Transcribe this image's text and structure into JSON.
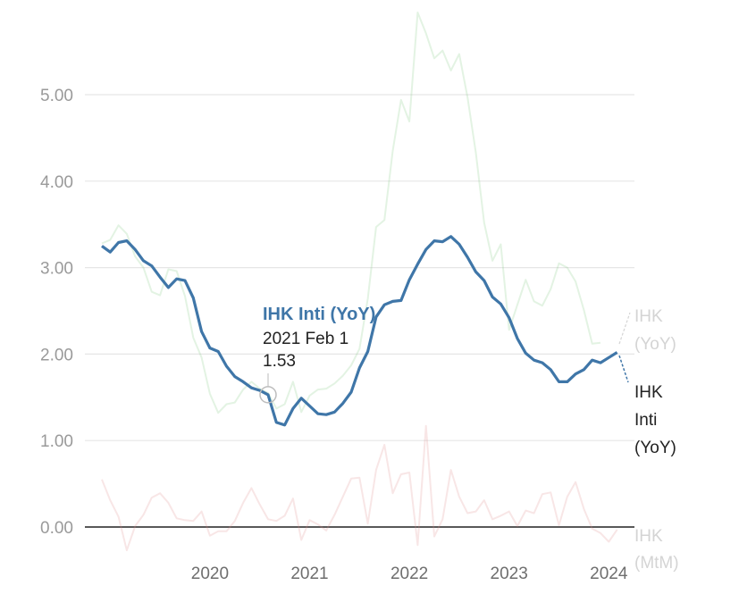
{
  "chart_data": {
    "type": "line",
    "title": "",
    "xlabel": "",
    "ylabel": "",
    "ylim": [
      0,
      6
    ],
    "yticks": [
      "0.00",
      "1.00",
      "2.00",
      "3.00",
      "4.00",
      "5.00"
    ],
    "xticks": [
      "2020",
      "2021",
      "2022",
      "2023",
      "2024"
    ],
    "grid": true,
    "x_start": "2019-06",
    "series": [
      {
        "name": "IHK Inti (YoY)",
        "color": "#3f76a8",
        "values": [
          3.25,
          3.18,
          3.29,
          3.31,
          3.21,
          3.08,
          3.02,
          2.89,
          2.77,
          2.87,
          2.85,
          2.65,
          2.26,
          2.07,
          2.03,
          1.86,
          1.74,
          1.68,
          1.61,
          1.58,
          1.53,
          1.21,
          1.18,
          1.37,
          1.49,
          1.4,
          1.31,
          1.3,
          1.33,
          1.43,
          1.56,
          1.84,
          2.03,
          2.43,
          2.57,
          2.61,
          2.62,
          2.86,
          3.04,
          3.21,
          3.31,
          3.3,
          3.36,
          3.27,
          3.12,
          2.95,
          2.85,
          2.66,
          2.58,
          2.42,
          2.18,
          2.01,
          1.93,
          1.9,
          1.82,
          1.68,
          1.68,
          1.77,
          1.82,
          1.93,
          1.9,
          1.96,
          2.02
        ]
      },
      {
        "name": "IHK (YoY)",
        "color": "#7ec97e",
        "values": [
          3.28,
          3.32,
          3.49,
          3.39,
          3.13,
          3.0,
          2.72,
          2.68,
          2.98,
          2.96,
          2.67,
          2.19,
          1.96,
          1.54,
          1.32,
          1.42,
          1.44,
          1.59,
          1.68,
          1.6,
          1.55,
          1.37,
          1.42,
          1.68,
          1.33,
          1.52,
          1.59,
          1.6,
          1.66,
          1.75,
          1.87,
          2.06,
          2.64,
          3.47,
          3.55,
          4.35,
          4.94,
          4.69,
          5.95,
          5.71,
          5.42,
          5.51,
          5.28,
          5.47,
          4.97,
          4.33,
          3.52,
          3.08,
          3.27,
          2.28,
          2.57,
          2.86,
          2.61,
          2.56,
          2.75,
          3.05,
          3.0,
          2.84,
          2.51,
          2.12,
          2.13
        ]
      },
      {
        "name": "IHK (MtM)",
        "color": "#e08c8c",
        "values": [
          0.55,
          0.31,
          0.12,
          -0.27,
          0.01,
          0.14,
          0.34,
          0.39,
          0.28,
          0.1,
          0.08,
          0.07,
          0.18,
          -0.1,
          -0.05,
          -0.05,
          0.07,
          0.28,
          0.45,
          0.26,
          0.09,
          0.07,
          0.13,
          0.33,
          -0.15,
          0.08,
          0.03,
          -0.04,
          0.14,
          0.35,
          0.56,
          0.57,
          0.04,
          0.66,
          0.95,
          0.39,
          0.61,
          0.63,
          -0.21,
          1.17,
          -0.11,
          0.09,
          0.66,
          0.35,
          0.16,
          0.18,
          0.31,
          0.09,
          0.13,
          0.18,
          0.01,
          0.19,
          0.16,
          0.38,
          0.4,
          0.02,
          0.35,
          0.52,
          0.21,
          -0.02,
          -0.07,
          -0.17,
          -0.03
        ]
      }
    ],
    "annotation": {
      "series": "IHK Inti (YoY)",
      "date": "2021 Feb 1",
      "value": "1.53"
    }
  },
  "labels": {
    "core": [
      "IHK",
      "Inti",
      "(YoY)"
    ],
    "headline": [
      "IHK",
      "(YoY)"
    ],
    "mtm": [
      "IHK",
      "(MtM)"
    ]
  },
  "colors": {
    "grid": "#e6e6e6",
    "zero": "#222222",
    "faded_label": "#d4d4d4"
  }
}
